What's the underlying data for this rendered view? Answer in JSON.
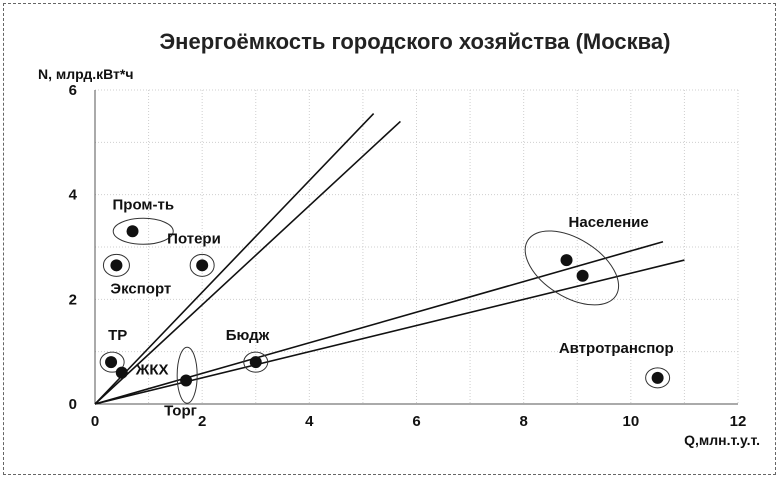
{
  "chart_data": {
    "type": "scatter",
    "title": "Энергоёмкость городского хозяйства (Москва)",
    "xlabel": "Q,млн.т.у.т.",
    "ylabel": "N, млрд.кВт*ч",
    "xlim": [
      0,
      12
    ],
    "ylim": [
      0,
      6
    ],
    "xticks": [
      "0",
      "2",
      "4",
      "6",
      "8",
      "10",
      "12"
    ],
    "yticks": [
      "0",
      "2",
      "4",
      "6"
    ],
    "grid": true,
    "points": [
      {
        "label": "Пром-ть",
        "x": 0.7,
        "y": 3.3
      },
      {
        "label": "Экспорт",
        "x": 0.4,
        "y": 2.65
      },
      {
        "label": "Потери",
        "x": 2.0,
        "y": 2.65
      },
      {
        "label": "ТР",
        "x": 0.3,
        "y": 0.8
      },
      {
        "label": "ЖКХ",
        "x": 0.5,
        "y": 0.6
      },
      {
        "label": "Торг",
        "x": 1.7,
        "y": 0.45
      },
      {
        "label": "Бюдж",
        "x": 3.0,
        "y": 0.8
      },
      {
        "label": "Население",
        "x": 8.8,
        "y": 2.75
      },
      {
        "label": "",
        "x": 9.1,
        "y": 2.45
      },
      {
        "label": "Автротранспор",
        "x": 10.5,
        "y": 0.5
      }
    ],
    "lines": [
      {
        "x": [
          0,
          5.2
        ],
        "y": [
          0,
          5.55
        ]
      },
      {
        "x": [
          0,
          5.7
        ],
        "y": [
          0,
          5.4
        ]
      },
      {
        "x": [
          0,
          10.6
        ],
        "y": [
          0,
          3.1
        ]
      },
      {
        "x": [
          0,
          11.0
        ],
        "y": [
          0,
          2.75
        ]
      }
    ]
  }
}
